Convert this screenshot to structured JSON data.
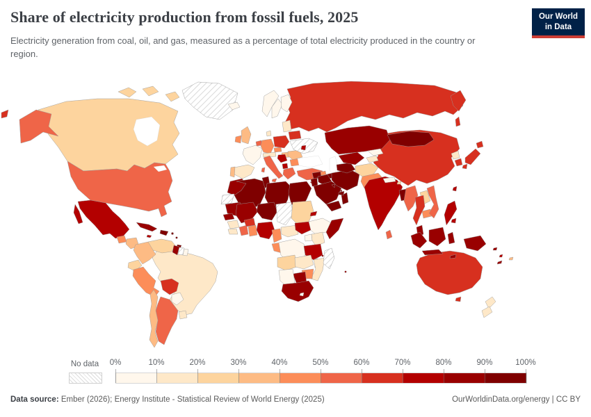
{
  "header": {
    "title": "Share of electricity production from fossil fuels, 2025",
    "subtitle": "Electricity generation from coal, oil, and gas, measured as a percentage of total electricity produced in the country or region.",
    "logo": {
      "line1": "Our World",
      "line2": "in Data",
      "bg": "#002147",
      "accent": "#cd3d34"
    }
  },
  "legend": {
    "no_data_label": "No data",
    "tick_labels": [
      "0%",
      "10%",
      "20%",
      "30%",
      "40%",
      "50%",
      "60%",
      "70%",
      "80%",
      "90%",
      "100%"
    ],
    "bin_colors": [
      "#fff7ec",
      "#fee8c8",
      "#fdd49e",
      "#fdbb84",
      "#fc8d59",
      "#ef6548",
      "#d7301f",
      "#b30000",
      "#990000",
      "#7f0000"
    ]
  },
  "footer": {
    "source_label": "Data source:",
    "source_text": " Ember (2026); Energy Institute - Statistical Review of World Energy (2025)",
    "right_text": "OurWorldinData.org/energy | CC BY"
  },
  "chart_data": {
    "type": "choropleth",
    "title": "Share of electricity production from fossil fuels, 2025",
    "unit": "% of total electricity production",
    "bin_edges": [
      0,
      10,
      20,
      30,
      40,
      50,
      60,
      70,
      80,
      90,
      100
    ],
    "no_data_style": "hatched",
    "legend_position": "bottom",
    "countries": [
      {
        "id": "united-states",
        "name": "United States",
        "value": 58
      },
      {
        "id": "canada",
        "name": "Canada",
        "value": 22
      },
      {
        "id": "greenland",
        "name": "Greenland",
        "value": null
      },
      {
        "id": "mexico",
        "name": "Mexico",
        "value": 74
      },
      {
        "id": "guatemala",
        "name": "Guatemala",
        "value": 42
      },
      {
        "id": "honduras-nicaragua",
        "name": "Honduras & Nicaragua",
        "value": 32
      },
      {
        "id": "costa-rica-panama",
        "name": "Costa Rica & Panama",
        "value": 35
      },
      {
        "id": "cuba",
        "name": "Cuba",
        "value": 88
      },
      {
        "id": "hispaniola",
        "name": "Haiti & Dominican Republic",
        "value": 90
      },
      {
        "id": "jamaica",
        "name": "Jamaica",
        "value": 75
      },
      {
        "id": "trinidad-and-tobago",
        "name": "Trinidad and Tobago",
        "value": 99
      },
      {
        "id": "caribbean-islands",
        "name": "Lesser Antilles",
        "value": 92
      },
      {
        "id": "venezuela",
        "name": "Venezuela",
        "value": 25
      },
      {
        "id": "guyana",
        "name": "Guyana",
        "value": 85
      },
      {
        "id": "suriname",
        "name": "Suriname",
        "value": null
      },
      {
        "id": "french-guiana",
        "name": "French Guiana",
        "value": 8
      },
      {
        "id": "colombia",
        "name": "Colombia",
        "value": 33
      },
      {
        "id": "ecuador",
        "name": "Ecuador",
        "value": 22
      },
      {
        "id": "peru",
        "name": "Peru",
        "value": 45
      },
      {
        "id": "brazil",
        "name": "Brazil",
        "value": 12
      },
      {
        "id": "bolivia",
        "name": "Bolivia",
        "value": 64
      },
      {
        "id": "paraguay",
        "name": "Paraguay",
        "value": 0
      },
      {
        "id": "uruguay",
        "name": "Uruguay",
        "value": 14
      },
      {
        "id": "argentina",
        "name": "Argentina",
        "value": 57
      },
      {
        "id": "chile",
        "name": "Chile",
        "value": 38
      },
      {
        "id": "iceland",
        "name": "Iceland",
        "value": 0
      },
      {
        "id": "norway",
        "name": "Norway",
        "value": 1
      },
      {
        "id": "sweden",
        "name": "Sweden",
        "value": 2
      },
      {
        "id": "finland",
        "name": "Finland",
        "value": 6
      },
      {
        "id": "denmark",
        "name": "Denmark",
        "value": 14
      },
      {
        "id": "united-kingdom",
        "name": "United Kingdom",
        "value": 31
      },
      {
        "id": "ireland",
        "name": "Ireland",
        "value": 44
      },
      {
        "id": "france",
        "name": "France",
        "value": 7
      },
      {
        "id": "spain",
        "name": "Spain",
        "value": 16
      },
      {
        "id": "portugal",
        "name": "Portugal",
        "value": 34
      },
      {
        "id": "belgium-netherlands",
        "name": "Belgium & Netherlands",
        "value": 52
      },
      {
        "id": "germany",
        "name": "Germany",
        "value": 44
      },
      {
        "id": "switzerland-austria",
        "name": "Switzerland & Austria",
        "value": 12
      },
      {
        "id": "czechia",
        "name": "Czechia",
        "value": 44
      },
      {
        "id": "poland",
        "name": "Poland",
        "value": 66
      },
      {
        "id": "italy",
        "name": "Italy",
        "value": 54
      },
      {
        "id": "hungary",
        "name": "Hungary",
        "value": 33
      },
      {
        "id": "balkans-west",
        "name": "Serbia & Bosnia",
        "value": 72
      },
      {
        "id": "albania-macedonia",
        "name": "North Macedonia & Albania",
        "value": 75
      },
      {
        "id": "greece",
        "name": "Greece",
        "value": 53
      },
      {
        "id": "romania",
        "name": "Romania",
        "value": 36
      },
      {
        "id": "bulgaria",
        "name": "Bulgaria",
        "value": 42
      },
      {
        "id": "baltic-states",
        "name": "Baltic states",
        "value": 18
      },
      {
        "id": "belarus",
        "name": "Belarus",
        "value": 63
      },
      {
        "id": "ukraine",
        "name": "Ukraine",
        "value": null
      },
      {
        "id": "moldova",
        "name": "Moldova",
        "value": 78
      },
      {
        "id": "turkey",
        "name": "Turkey",
        "value": 57
      },
      {
        "id": "cyprus",
        "name": "Cyprus",
        "value": 78
      },
      {
        "id": "russia",
        "name": "Russia",
        "value": 63
      },
      {
        "id": "georgia",
        "name": "Georgia",
        "value": 42
      },
      {
        "id": "armenia",
        "name": "Armenia",
        "value": 85
      },
      {
        "id": "azerbaijan",
        "name": "Azerbaijan",
        "value": 94
      },
      {
        "id": "morocco",
        "name": "Morocco",
        "value": 82
      },
      {
        "id": "western-sahara",
        "name": "Western Sahara",
        "value": null
      },
      {
        "id": "algeria",
        "name": "Algeria",
        "value": 99
      },
      {
        "id": "tunisia",
        "name": "Tunisia",
        "value": 97
      },
      {
        "id": "libya",
        "name": "Libya",
        "value": 100
      },
      {
        "id": "egypt",
        "name": "Egypt",
        "value": 91
      },
      {
        "id": "mauritania",
        "name": "Mauritania",
        "value": 82
      },
      {
        "id": "mali",
        "name": "Mali",
        "value": 84
      },
      {
        "id": "niger",
        "name": "Niger",
        "value": 95
      },
      {
        "id": "chad",
        "name": "Chad",
        "value": null
      },
      {
        "id": "sudan",
        "name": "Sudan",
        "value": 28
      },
      {
        "id": "eritrea",
        "name": "Eritrea",
        "value": 75
      },
      {
        "id": "ethiopia",
        "name": "Ethiopia",
        "value": 1
      },
      {
        "id": "somalia",
        "name": "Somalia",
        "value": 88
      },
      {
        "id": "senegal",
        "name": "Senegal",
        "value": 84
      },
      {
        "id": "guinea",
        "name": "Guinea",
        "value": 15
      },
      {
        "id": "sierra-leone-liberia",
        "name": "Sierra Leone & Liberia",
        "value": 12
      },
      {
        "id": "cote-divoire",
        "name": "Cote d'Ivoire",
        "value": 58
      },
      {
        "id": "burkina-faso",
        "name": "Burkina Faso",
        "value": 64
      },
      {
        "id": "ghana",
        "name": "Ghana",
        "value": 47
      },
      {
        "id": "nigeria",
        "name": "Nigeria",
        "value": 77
      },
      {
        "id": "cameroon",
        "name": "Cameroon",
        "value": 42
      },
      {
        "id": "central-african-republic",
        "name": "Central African Republic",
        "value": 12
      },
      {
        "id": "south-sudan",
        "name": "South Sudan",
        "value": 72
      },
      {
        "id": "uganda",
        "name": "Uganda",
        "value": 4
      },
      {
        "id": "kenya",
        "name": "Kenya",
        "value": 12
      },
      {
        "id": "gabon-congo",
        "name": "Gabon & Congo",
        "value": 46
      },
      {
        "id": "democratic-republic-of-congo",
        "name": "Democratic Republic of Congo",
        "value": 2
      },
      {
        "id": "tanzania",
        "name": "Tanzania",
        "value": 72
      },
      {
        "id": "angola",
        "name": "Angola",
        "value": 28
      },
      {
        "id": "zambia",
        "name": "Zambia",
        "value": 11
      },
      {
        "id": "malawi",
        "name": "Malawi",
        "value": 14
      },
      {
        "id": "mozambique",
        "name": "Mozambique",
        "value": 14
      },
      {
        "id": "zimbabwe",
        "name": "Zimbabwe",
        "value": 46
      },
      {
        "id": "botswana",
        "name": "Botswana",
        "value": 88
      },
      {
        "id": "namibia",
        "name": "Namibia",
        "value": 4
      },
      {
        "id": "south-africa",
        "name": "South Africa",
        "value": 84
      },
      {
        "id": "lesotho",
        "name": "Lesotho",
        "value": 0
      },
      {
        "id": "madagascar",
        "name": "Madagascar",
        "value": null
      },
      {
        "id": "comoros-mauritius",
        "name": "Comoros & Mauritius",
        "value": 85
      },
      {
        "id": "syria",
        "name": "Syria",
        "value": 93
      },
      {
        "id": "israel-jordan",
        "name": "Israel & Jordan",
        "value": 94
      },
      {
        "id": "iraq",
        "name": "Iraq",
        "value": 97
      },
      {
        "id": "saudi-arabia",
        "name": "Saudi Arabia",
        "value": 100
      },
      {
        "id": "yemen",
        "name": "Yemen",
        "value": 100
      },
      {
        "id": "oman",
        "name": "Oman",
        "value": 96
      },
      {
        "id": "kuwait",
        "name": "Kuwait",
        "value": 100
      },
      {
        "id": "united-arab-emirates",
        "name": "United Arab Emirates",
        "value": 95
      },
      {
        "id": "qatar",
        "name": "Qatar",
        "value": 100
      },
      {
        "id": "iran",
        "name": "Iran",
        "value": 94
      },
      {
        "id": "turkmenistan",
        "name": "Turkmenistan",
        "value": 100
      },
      {
        "id": "uzbekistan",
        "name": "Uzbekistan",
        "value": 84
      },
      {
        "id": "kazakhstan",
        "name": "Kazakhstan",
        "value": 82
      },
      {
        "id": "kyrgyzstan",
        "name": "Kyrgyzstan",
        "value": 8
      },
      {
        "id": "tajikistan",
        "name": "Tajikistan",
        "value": 11
      },
      {
        "id": "afghanistan",
        "name": "Afghanistan",
        "value": 24
      },
      {
        "id": "pakistan",
        "name": "Pakistan",
        "value": 47
      },
      {
        "id": "india",
        "name": "India",
        "value": 74
      },
      {
        "id": "nepal",
        "name": "Nepal",
        "value": 2
      },
      {
        "id": "bhutan",
        "name": "Bhutan",
        "value": 22
      },
      {
        "id": "bangladesh",
        "name": "Bangladesh",
        "value": 98
      },
      {
        "id": "sri-lanka",
        "name": "Sri Lanka",
        "value": 52
      },
      {
        "id": "china",
        "name": "China",
        "value": 62
      },
      {
        "id": "mongolia",
        "name": "Mongolia",
        "value": 93
      },
      {
        "id": "north-korea",
        "name": "North Korea",
        "value": 12
      },
      {
        "id": "south-korea",
        "name": "South Korea",
        "value": 62
      },
      {
        "id": "japan",
        "name": "Japan",
        "value": 65
      },
      {
        "id": "taiwan",
        "name": "Taiwan",
        "value": 79
      },
      {
        "id": "myanmar",
        "name": "Myanmar",
        "value": 55
      },
      {
        "id": "laos",
        "name": "Laos",
        "value": 25
      },
      {
        "id": "thailand",
        "name": "Thailand",
        "value": 66
      },
      {
        "id": "cambodia",
        "name": "Cambodia",
        "value": 44
      },
      {
        "id": "vietnam",
        "name": "Vietnam",
        "value": 55
      },
      {
        "id": "malaysia",
        "name": "Malaysia",
        "value": 82
      },
      {
        "id": "indonesia",
        "name": "Indonesia",
        "value": 81
      },
      {
        "id": "philippines",
        "name": "Philippines",
        "value": 77
      },
      {
        "id": "papua-new-guinea",
        "name": "Papua New Guinea",
        "value": 82
      },
      {
        "id": "timor",
        "name": "Timor",
        "value": 85
      },
      {
        "id": "australia",
        "name": "Australia",
        "value": 62
      },
      {
        "id": "new-zealand",
        "name": "New Zealand",
        "value": 14
      },
      {
        "id": "fiji",
        "name": "Fiji",
        "value": 38
      },
      {
        "id": "solomon-islands",
        "name": "Solomon Islands",
        "value": 88
      },
      {
        "id": "vanuatu",
        "name": "Vanuatu",
        "value": 75
      },
      {
        "id": "new-caledonia",
        "name": "New Caledonia",
        "value": 85
      }
    ]
  }
}
